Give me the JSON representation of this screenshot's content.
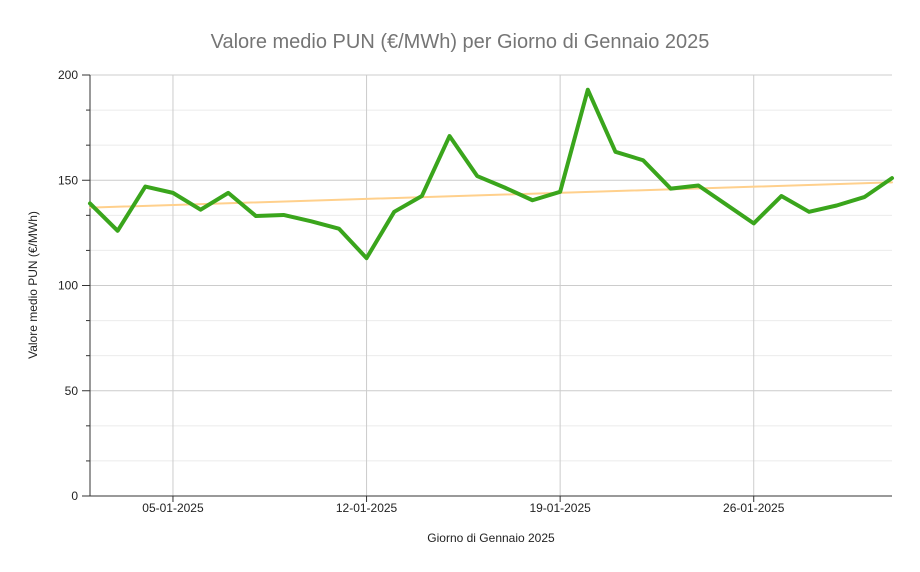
{
  "chart_data": {
    "type": "line",
    "title": "Valore medio PUN (€/MWh) per Giorno di Gennaio 2025",
    "xlabel": "Giorno di Gennaio 2025",
    "ylabel": "Valore medio PUN (€/MWh)",
    "ylim": [
      0,
      200
    ],
    "yticks": [
      0,
      50,
      100,
      150,
      200
    ],
    "xlim": [
      "2025-01-02",
      "2025-01-31"
    ],
    "xticks": [
      "05-01-2025",
      "12-01-2025",
      "19-01-2025",
      "26-01-2025"
    ],
    "grid": true,
    "legend": "none",
    "series": [
      {
        "color": "#3aa51c",
        "x": [
          "2025-01-02",
          "2025-01-03",
          "2025-01-04",
          "2025-01-05",
          "2025-01-06",
          "2025-01-07",
          "2025-01-08",
          "2025-01-09",
          "2025-01-10",
          "2025-01-11",
          "2025-01-12",
          "2025-01-13",
          "2025-01-14",
          "2025-01-15",
          "2025-01-16",
          "2025-01-17",
          "2025-01-18",
          "2025-01-19",
          "2025-01-20",
          "2025-01-21",
          "2025-01-22",
          "2025-01-23",
          "2025-01-24",
          "2025-01-25",
          "2025-01-26",
          "2025-01-27",
          "2025-01-28",
          "2025-01-29",
          "2025-01-30",
          "2025-01-31"
        ],
        "values": [
          139,
          126,
          147,
          144,
          136,
          144,
          133,
          133.5,
          130.5,
          127,
          113,
          135,
          142.5,
          171,
          152,
          146.5,
          140.5,
          144.5,
          193,
          163.5,
          159.5,
          146,
          147.5,
          138.5,
          129.5,
          142.5,
          135,
          138,
          142,
          151
        ]
      },
      {
        "kind": "trend",
        "color": "#ffd08c",
        "x": [
          "2025-01-02",
          "2025-01-31"
        ],
        "values": [
          137,
          149
        ]
      }
    ]
  }
}
